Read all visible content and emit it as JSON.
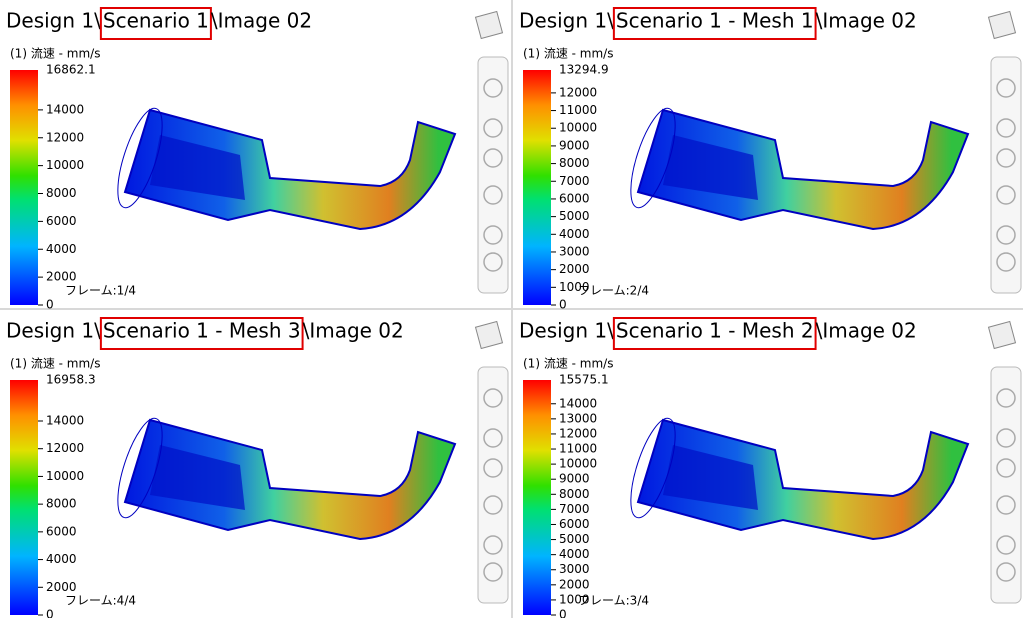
{
  "panels": [
    {
      "title_prefix": "Design 1\\",
      "scenario": "Scenario 1",
      "title_suffix": "\\Image 02",
      "legend_label": "(1) 流速 - mm/s",
      "max": 16862.1,
      "ticks": [
        0,
        2000,
        4000,
        6000,
        8000,
        10000,
        12000,
        14000
      ],
      "frame": "フレーム:1/4"
    },
    {
      "title_prefix": "Design 1\\",
      "scenario": "Scenario 1 - Mesh 1",
      "title_suffix": "\\Image 02",
      "legend_label": "(1) 流速 - mm/s",
      "max": 13294.9,
      "ticks": [
        0,
        1000,
        2000,
        3000,
        4000,
        5000,
        6000,
        7000,
        8000,
        9000,
        10000,
        11000,
        12000
      ],
      "frame": "フレーム:2/4"
    },
    {
      "title_prefix": "Design 1\\",
      "scenario": "Scenario 1 - Mesh 3",
      "title_suffix": "\\Image 02",
      "legend_label": "(1) 流速 - mm/s",
      "max": 16958.3,
      "ticks": [
        0,
        2000,
        4000,
        6000,
        8000,
        10000,
        12000,
        14000
      ],
      "frame": "フレーム:4/4"
    },
    {
      "title_prefix": "Design 1\\",
      "scenario": "Scenario 1 - Mesh 2",
      "title_suffix": "\\Image 02",
      "legend_label": "(1) 流速 - mm/s",
      "max": 15575.1,
      "ticks": [
        0,
        1000,
        2000,
        3000,
        4000,
        5000,
        6000,
        7000,
        8000,
        9000,
        10000,
        11000,
        12000,
        13000,
        14000
      ],
      "frame": "フレーム:3/4"
    }
  ]
}
